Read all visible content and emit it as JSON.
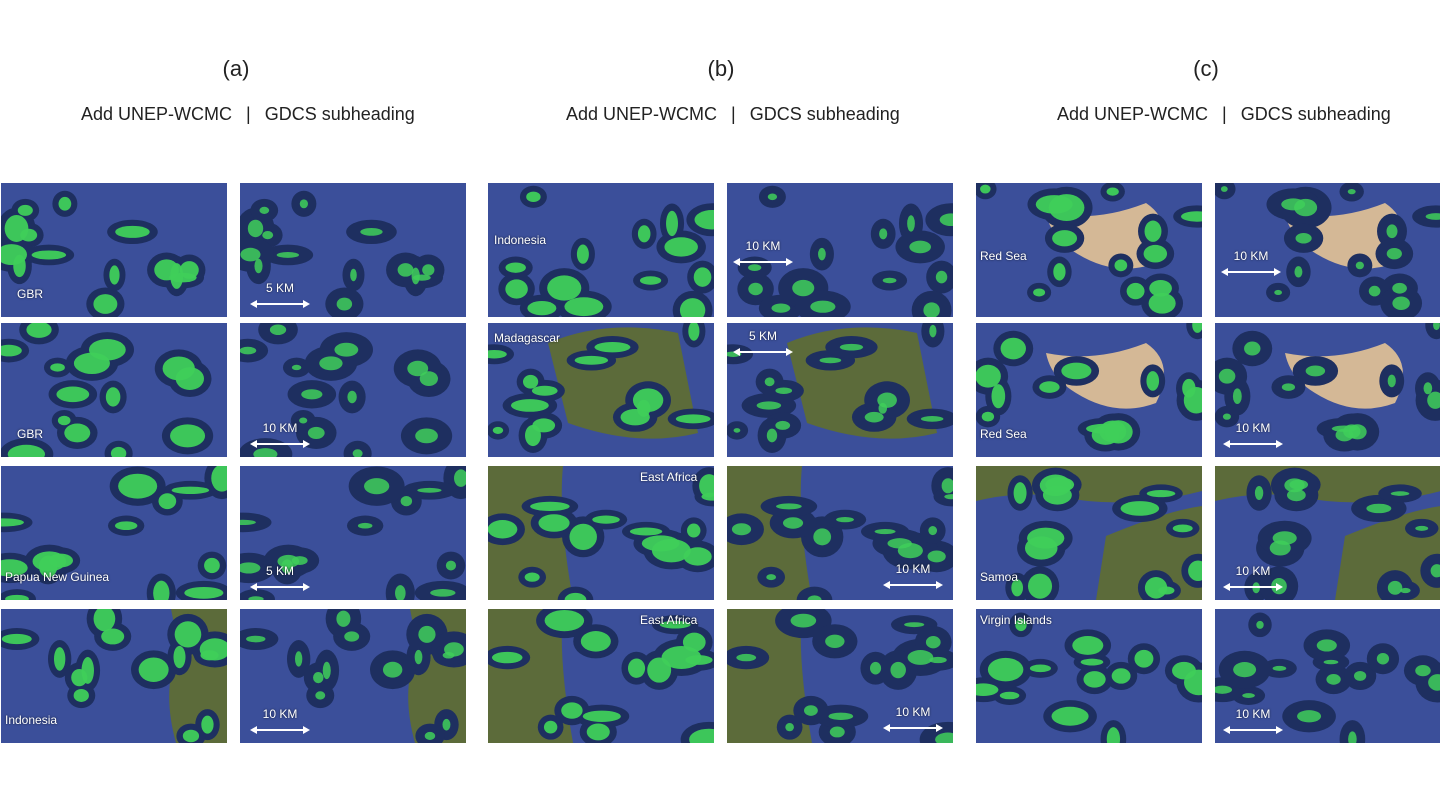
{
  "columns": [
    {
      "label": "(a)",
      "sub_left": "Add UNEP-WCMC",
      "sub_sep": "|",
      "sub_right": "GDCS subheading"
    },
    {
      "label": "(b)",
      "sub_left": "Add UNEP-WCMC",
      "sub_sep": "|",
      "sub_right": "GDCS subheading"
    },
    {
      "label": "(c)",
      "sub_left": "Add UNEP-WCMC",
      "sub_sep": "|",
      "sub_right": "GDCS subheading"
    }
  ],
  "tiles": {
    "a": [
      {
        "region": "GBR",
        "scale": "5 KM"
      },
      {
        "region": "GBR",
        "scale": "10 KM"
      },
      {
        "region": "Papua New Guinea",
        "scale": "5 KM"
      },
      {
        "region": "Indonesia",
        "scale": "10 KM"
      }
    ],
    "b": [
      {
        "region": "Indonesia",
        "scale": "10 KM"
      },
      {
        "region": "Madagascar",
        "scale": "5 KM"
      },
      {
        "region": "East Africa",
        "scale": "10 KM"
      },
      {
        "region": "East Africa",
        "scale": "10 KM"
      }
    ],
    "c": [
      {
        "region": "Red Sea",
        "scale": "10 KM"
      },
      {
        "region": "Red Sea",
        "scale": "10 KM"
      },
      {
        "region": "Samoa",
        "scale": "10 KM"
      },
      {
        "region": "Virgin Islands",
        "scale": "10 KM"
      }
    ]
  },
  "colors": {
    "ocean": "#3b4f9a",
    "deep_ocean": "#1e2f60",
    "reef_green": "#3fcf5a",
    "land": "#5c6b3a",
    "sand": "#d4b896"
  }
}
